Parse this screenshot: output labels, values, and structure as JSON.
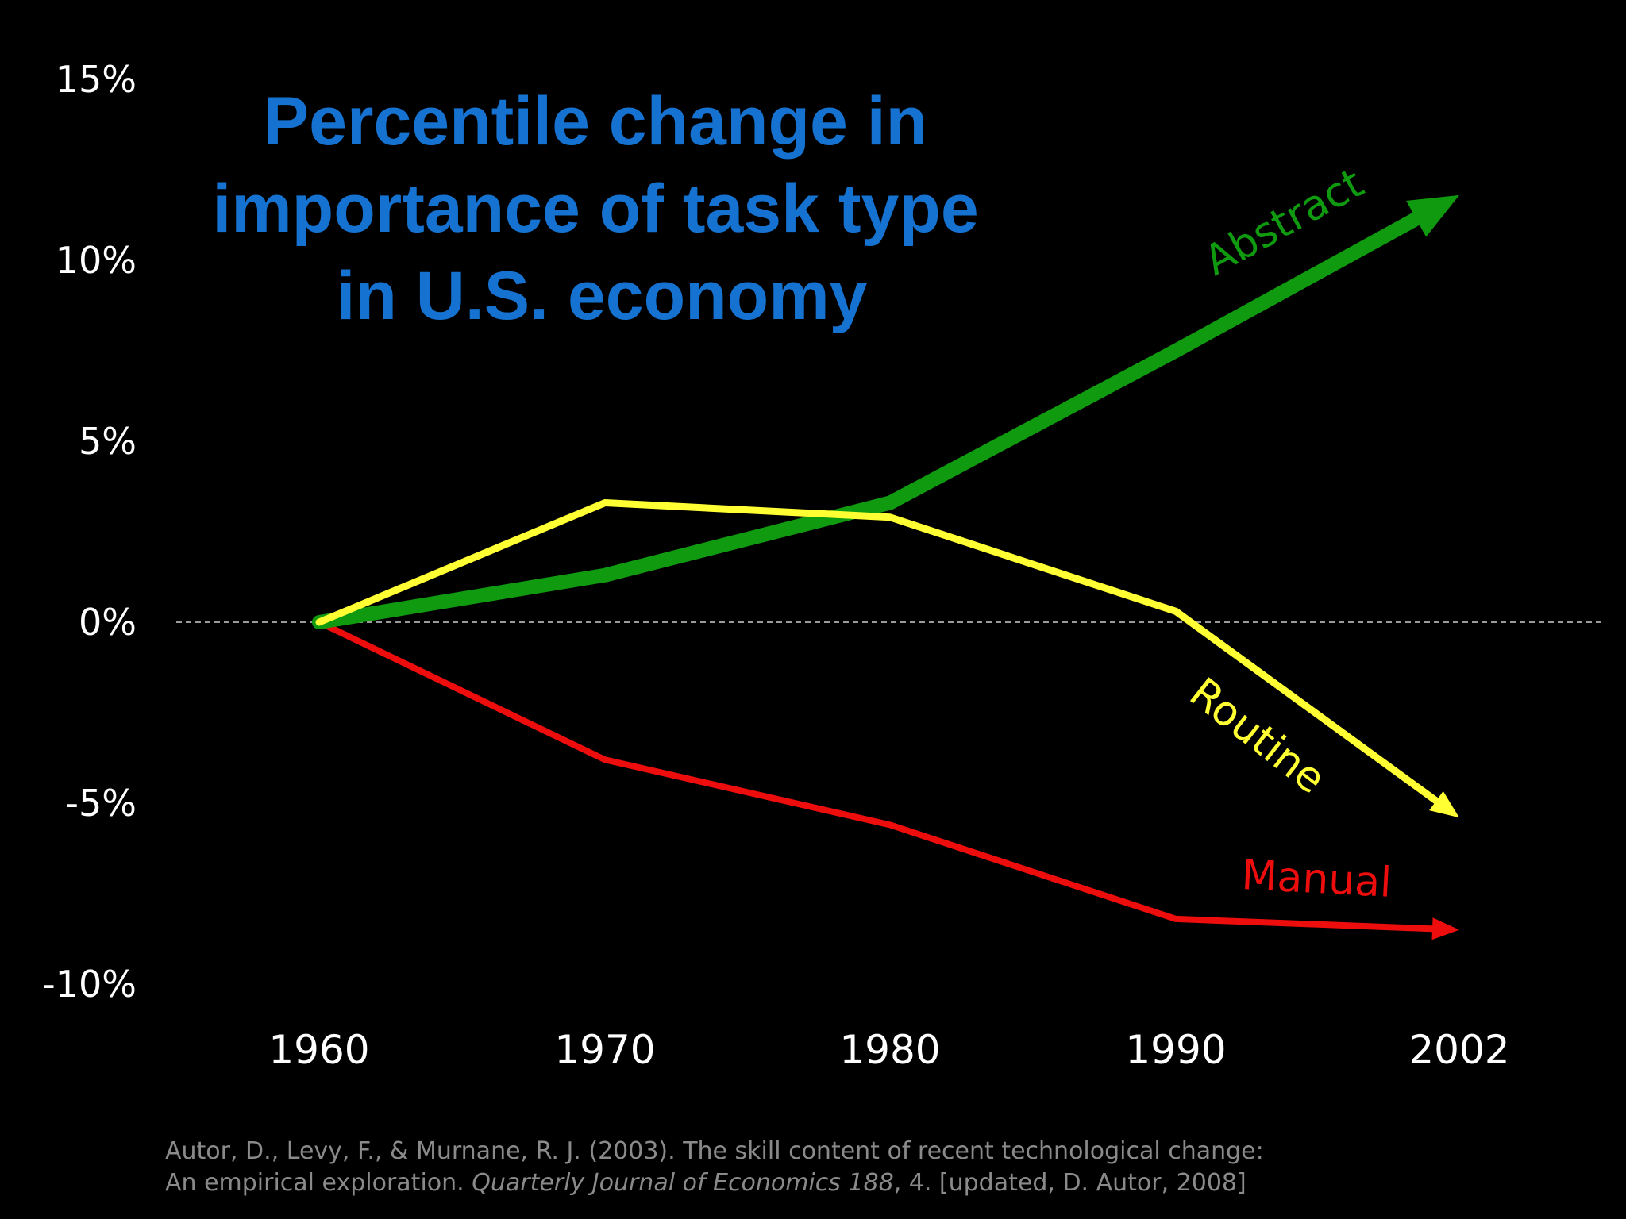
{
  "chart_data": {
    "type": "line",
    "title_lines": [
      "Percentile change in",
      "importance of task type",
      "in U.S. economy"
    ],
    "x": [
      1960,
      1970,
      1980,
      1990,
      2002
    ],
    "x_tick_labels": [
      "1960",
      "1970",
      "1980",
      "1990",
      "2002"
    ],
    "y_tick_labels": [
      "15%",
      "10%",
      "5%",
      "0%",
      "-5%",
      "-10%"
    ],
    "ylim": [
      -10,
      15
    ],
    "grid": false,
    "reference_line": {
      "y": 0,
      "style": "dashed"
    },
    "series": [
      {
        "name": "Abstract",
        "color": "#0f9a0f",
        "values": [
          0,
          1.3,
          3.3,
          7.5,
          11.8
        ]
      },
      {
        "name": "Routine",
        "color": "#ffff33",
        "values": [
          0,
          3.3,
          2.9,
          0.3,
          -5.4
        ]
      },
      {
        "name": "Manual",
        "color": "#ee0d0d",
        "values": [
          0,
          -3.8,
          -5.6,
          -8.2,
          -8.5
        ]
      }
    ]
  },
  "source": {
    "line1": "Autor, D., Levy, F., & Murnane, R. J. (2003). The skill content of recent technological change:",
    "line2_plain": "An empirical exploration. ",
    "line2_journal": "Quarterly Journal of Economics 188",
    "line2_rest": ", 4. [updated, D. Autor, 2008]"
  }
}
